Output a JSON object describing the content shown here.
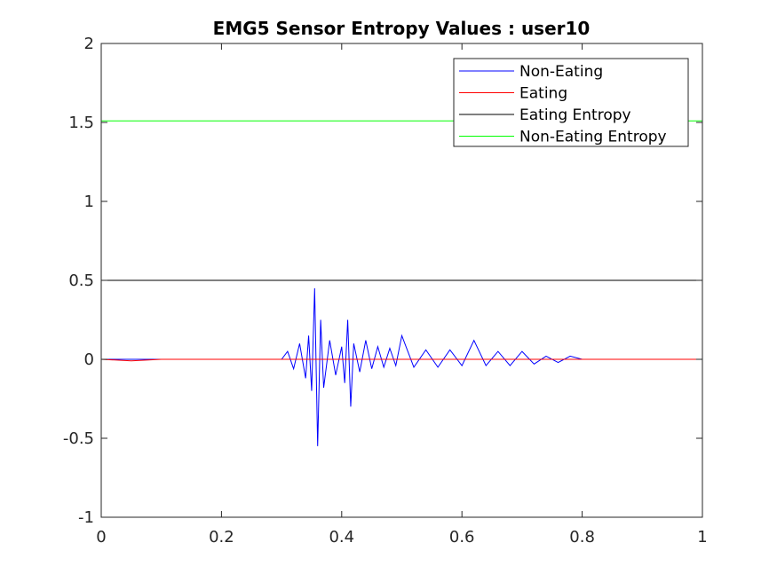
{
  "chart_data": {
    "type": "line",
    "title": "EMG5 Sensor Entropy Values : user10",
    "xlabel": "",
    "ylabel": "",
    "xlim": [
      0,
      1
    ],
    "ylim": [
      -1,
      2
    ],
    "x_ticks": [
      "0",
      "0.2",
      "0.4",
      "0.6",
      "0.8",
      "1"
    ],
    "y_ticks": [
      "-1",
      "-0.5",
      "0",
      "0.5",
      "1",
      "1.5",
      "2"
    ],
    "grid": false,
    "legend_position": "top-right",
    "series": [
      {
        "name": "Non-Eating",
        "color": "#0000ff",
        "kind": "signal",
        "x": [
          0.0,
          0.05,
          0.1,
          0.15,
          0.2,
          0.25,
          0.3,
          0.31,
          0.32,
          0.33,
          0.34,
          0.345,
          0.35,
          0.355,
          0.36,
          0.365,
          0.37,
          0.38,
          0.39,
          0.4,
          0.405,
          0.41,
          0.415,
          0.42,
          0.43,
          0.44,
          0.45,
          0.46,
          0.47,
          0.48,
          0.49,
          0.5,
          0.52,
          0.54,
          0.56,
          0.58,
          0.6,
          0.62,
          0.64,
          0.66,
          0.68,
          0.7,
          0.72,
          0.74,
          0.76,
          0.78,
          0.8,
          0.85,
          0.9,
          0.95,
          1.0
        ],
        "y": [
          0.0,
          0.0,
          0.0,
          0.0,
          0.0,
          0.0,
          0.0,
          0.05,
          -0.06,
          0.1,
          -0.12,
          0.15,
          -0.2,
          0.45,
          -0.55,
          0.25,
          -0.18,
          0.12,
          -0.1,
          0.08,
          -0.15,
          0.25,
          -0.3,
          0.1,
          -0.08,
          0.12,
          -0.06,
          0.08,
          -0.05,
          0.07,
          -0.04,
          0.15,
          -0.05,
          0.06,
          -0.05,
          0.06,
          -0.04,
          0.12,
          -0.04,
          0.05,
          -0.04,
          0.05,
          -0.03,
          0.02,
          -0.02,
          0.02,
          0.0,
          0.0,
          0.0,
          0.0,
          0.0
        ]
      },
      {
        "name": "Eating",
        "color": "#ff0000",
        "kind": "signal",
        "x": [
          0.0,
          0.05,
          0.1,
          0.2,
          0.3,
          0.35,
          0.4,
          0.45,
          0.5,
          0.6,
          0.7,
          0.8,
          0.9,
          1.0
        ],
        "y": [
          0.0,
          -0.01,
          0.0,
          0.0,
          0.0,
          0.0,
          0.0,
          0.0,
          0.0,
          0.0,
          0.0,
          0.0,
          0.0,
          0.0
        ]
      },
      {
        "name": "Eating Entropy",
        "color": "#000000",
        "kind": "constant",
        "x": [
          0,
          1
        ],
        "y": [
          0.5,
          0.5
        ]
      },
      {
        "name": "Non-Eating Entropy",
        "color": "#00ff00",
        "kind": "constant",
        "x": [
          0,
          1
        ],
        "y": [
          1.51,
          1.51
        ]
      }
    ]
  }
}
